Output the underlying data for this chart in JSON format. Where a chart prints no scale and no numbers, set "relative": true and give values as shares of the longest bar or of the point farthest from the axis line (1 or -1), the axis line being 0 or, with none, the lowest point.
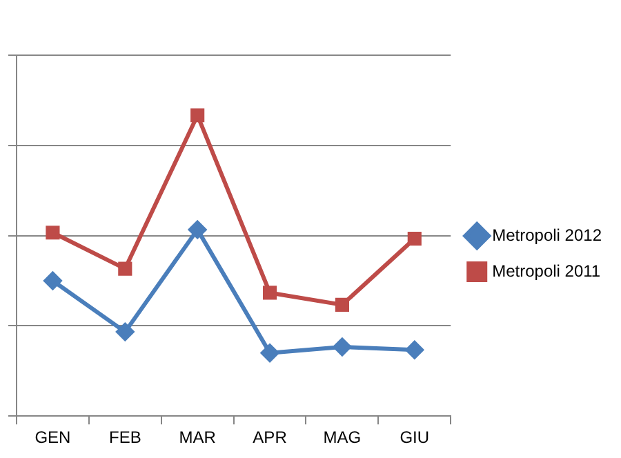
{
  "chart_data": {
    "type": "line",
    "relative": true,
    "categories": [
      "GEN",
      "FEB",
      "MAR",
      "APR",
      "MAG",
      "GIU"
    ],
    "series": [
      {
        "name": "Metropoli 2012",
        "color": "#4a7ebb",
        "marker": "diamond",
        "values": [
          0.45,
          0.28,
          0.62,
          0.21,
          0.23,
          0.22
        ]
      },
      {
        "name": "Metropoli 2011",
        "color": "#be4b48",
        "marker": "square",
        "values": [
          0.61,
          0.49,
          1,
          0.41,
          0.37,
          0.59
        ]
      }
    ],
    "grid": "y",
    "legend": "right"
  }
}
